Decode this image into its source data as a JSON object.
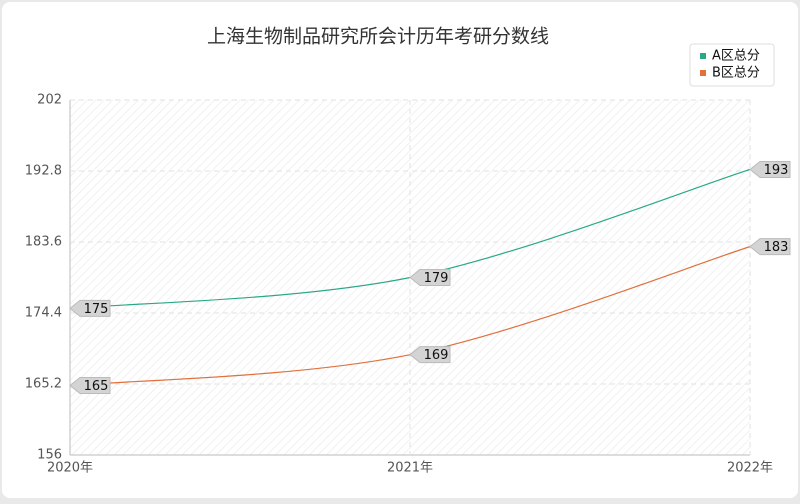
{
  "chart_data": {
    "type": "line",
    "title": "上海生物制品研究所会计历年考研分数线",
    "categories": [
      "2020年",
      "2021年",
      "2022年"
    ],
    "series": [
      {
        "name": "A区总分",
        "color": "#2aa886",
        "values": [
          175,
          179,
          193
        ]
      },
      {
        "name": "B区总分",
        "color": "#e0703c",
        "values": [
          165,
          169,
          183
        ]
      }
    ],
    "ylim": [
      156,
      202
    ],
    "yticks": [
      156,
      165.2,
      174.4,
      183.6,
      192.8,
      202
    ],
    "grid": true,
    "legend": "top-right"
  }
}
